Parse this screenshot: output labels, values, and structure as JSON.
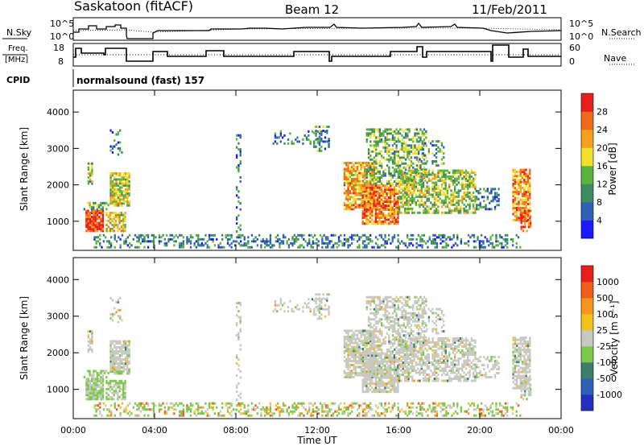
{
  "header": {
    "site": "Saskatoon (fitACF)",
    "beam": "Beam 12",
    "date": "11/Feb/2011"
  },
  "panels": {
    "nsky_label": "N.Sky",
    "nsearch_label": "N.Search",
    "freq_label": "Freq.",
    "freq_unit": "[MHz]",
    "nave_label": "Nave",
    "cpid_label": "CPID",
    "cpid_value": "normalsound (fast) 157",
    "left_ticks_top": [
      "10^5",
      "10^0"
    ],
    "right_ticks_top": [
      "10^5",
      "10^0"
    ],
    "freq_ticks": [
      "18",
      "8"
    ],
    "nave_ticks": [
      "60",
      "0"
    ]
  },
  "chart_data": [
    {
      "type": "heatmap",
      "title": "",
      "xlabel": "Time UT",
      "ylabel": "Slant Range [km]",
      "x_ticks": [
        "00:00",
        "04:00",
        "08:00",
        "12:00",
        "16:00",
        "20:00",
        "00:00"
      ],
      "y_ticks": [
        "1000",
        "2000",
        "3000",
        "4000"
      ],
      "ylim": [
        200,
        4600
      ],
      "colorbar": {
        "label": "Power [dB]",
        "ticks": [
          "4",
          "8",
          "12",
          "16",
          "20",
          "24",
          "28"
        ],
        "colors": [
          "#1a1aff",
          "#2e62b8",
          "#3f8a5f",
          "#58b43c",
          "#f0e02a",
          "#f5a020",
          "#ee6a18",
          "#e81e1e"
        ]
      }
    },
    {
      "type": "heatmap",
      "title": "",
      "xlabel": "Time UT",
      "ylabel": "Slant Range [km]",
      "x_ticks": [
        "00:00",
        "04:00",
        "08:00",
        "12:00",
        "16:00",
        "20:00",
        "00:00"
      ],
      "y_ticks": [
        "1000",
        "2000",
        "3000",
        "4000"
      ],
      "ylim": [
        200,
        4600
      ],
      "colorbar": {
        "label": "Velocity [m s⁻¹]",
        "ticks": [
          "1000",
          "500",
          "100",
          "25",
          "-25",
          "-100",
          "-500",
          "-1000"
        ],
        "colors": [
          "#2430c0",
          "#2e62b8",
          "#3a7f6a",
          "#7cc84a",
          "#c8c8c0",
          "#f0c21a",
          "#f5951c",
          "#ef5d17",
          "#e81e1e"
        ]
      }
    }
  ]
}
